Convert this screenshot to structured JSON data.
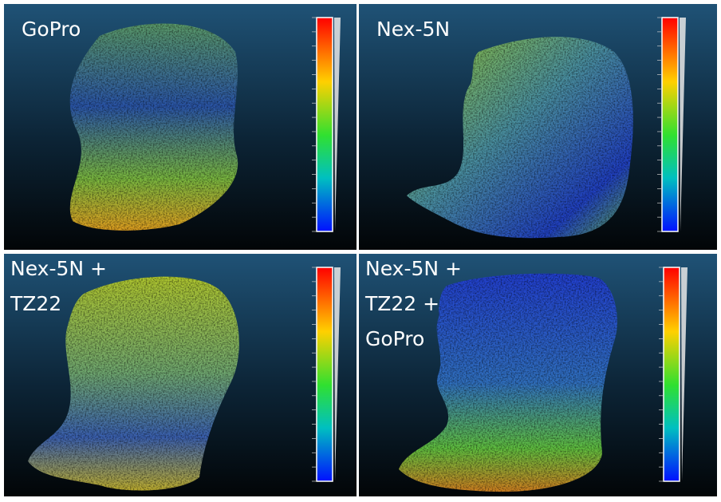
{
  "panels": [
    {
      "label_lines": [
        "GoPro"
      ]
    },
    {
      "label_lines": [
        "Nex-5N"
      ]
    },
    {
      "label_lines": [
        "Nex-5N +",
        "TZ22"
      ]
    },
    {
      "label_lines": [
        "Nex-5N +",
        "TZ22 +",
        "GoPro"
      ]
    }
  ]
}
